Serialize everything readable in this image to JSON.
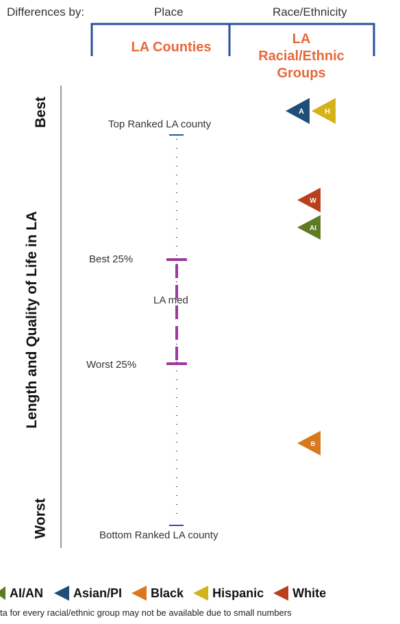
{
  "header": {
    "differences_by": "Differences by:",
    "place": "Place",
    "race": "Race/Ethnicity",
    "la_counties": "LA Counties",
    "la_groups": "LA Racial/Ethnic Groups"
  },
  "axis": {
    "title": "Length and Quality of Life in LA",
    "best": "Best",
    "worst": "Worst"
  },
  "scale_labels": {
    "top": "Top Ranked LA county",
    "best25": "Best 25%",
    "median": "LA med",
    "worst25": "Worst 25%",
    "bottom": "Bottom Ranked LA county"
  },
  "markers": [
    {
      "letter": "A",
      "group": "Asian/PI",
      "color": "#1f4e79"
    },
    {
      "letter": "H",
      "group": "Hispanic",
      "color": "#d4b21a"
    },
    {
      "letter": "W",
      "group": "White",
      "color": "#b8401e"
    },
    {
      "letter": "AI",
      "group": "AI/AN",
      "color": "#5e7a22"
    },
    {
      "letter": "B",
      "group": "Black",
      "color": "#d9781e"
    }
  ],
  "legend": [
    {
      "label": "AI/AN",
      "letter": "AI",
      "color": "#5e7a22"
    },
    {
      "label": "Asian/PI",
      "letter": "A",
      "color": "#1f4e79"
    },
    {
      "label": "Black",
      "letter": "B",
      "color": "#d9781e"
    },
    {
      "label": "Hispanic",
      "letter": "H",
      "color": "#d4b21a"
    },
    {
      "label": "White",
      "letter": "W",
      "color": "#b8401e"
    }
  ],
  "colors": {
    "bracket": "#2b4f9e",
    "iqr": "#9b3a9b",
    "accent": "#e8683a"
  },
  "note": "ta for every racial/ethnic group may not be available due to small numbers"
}
